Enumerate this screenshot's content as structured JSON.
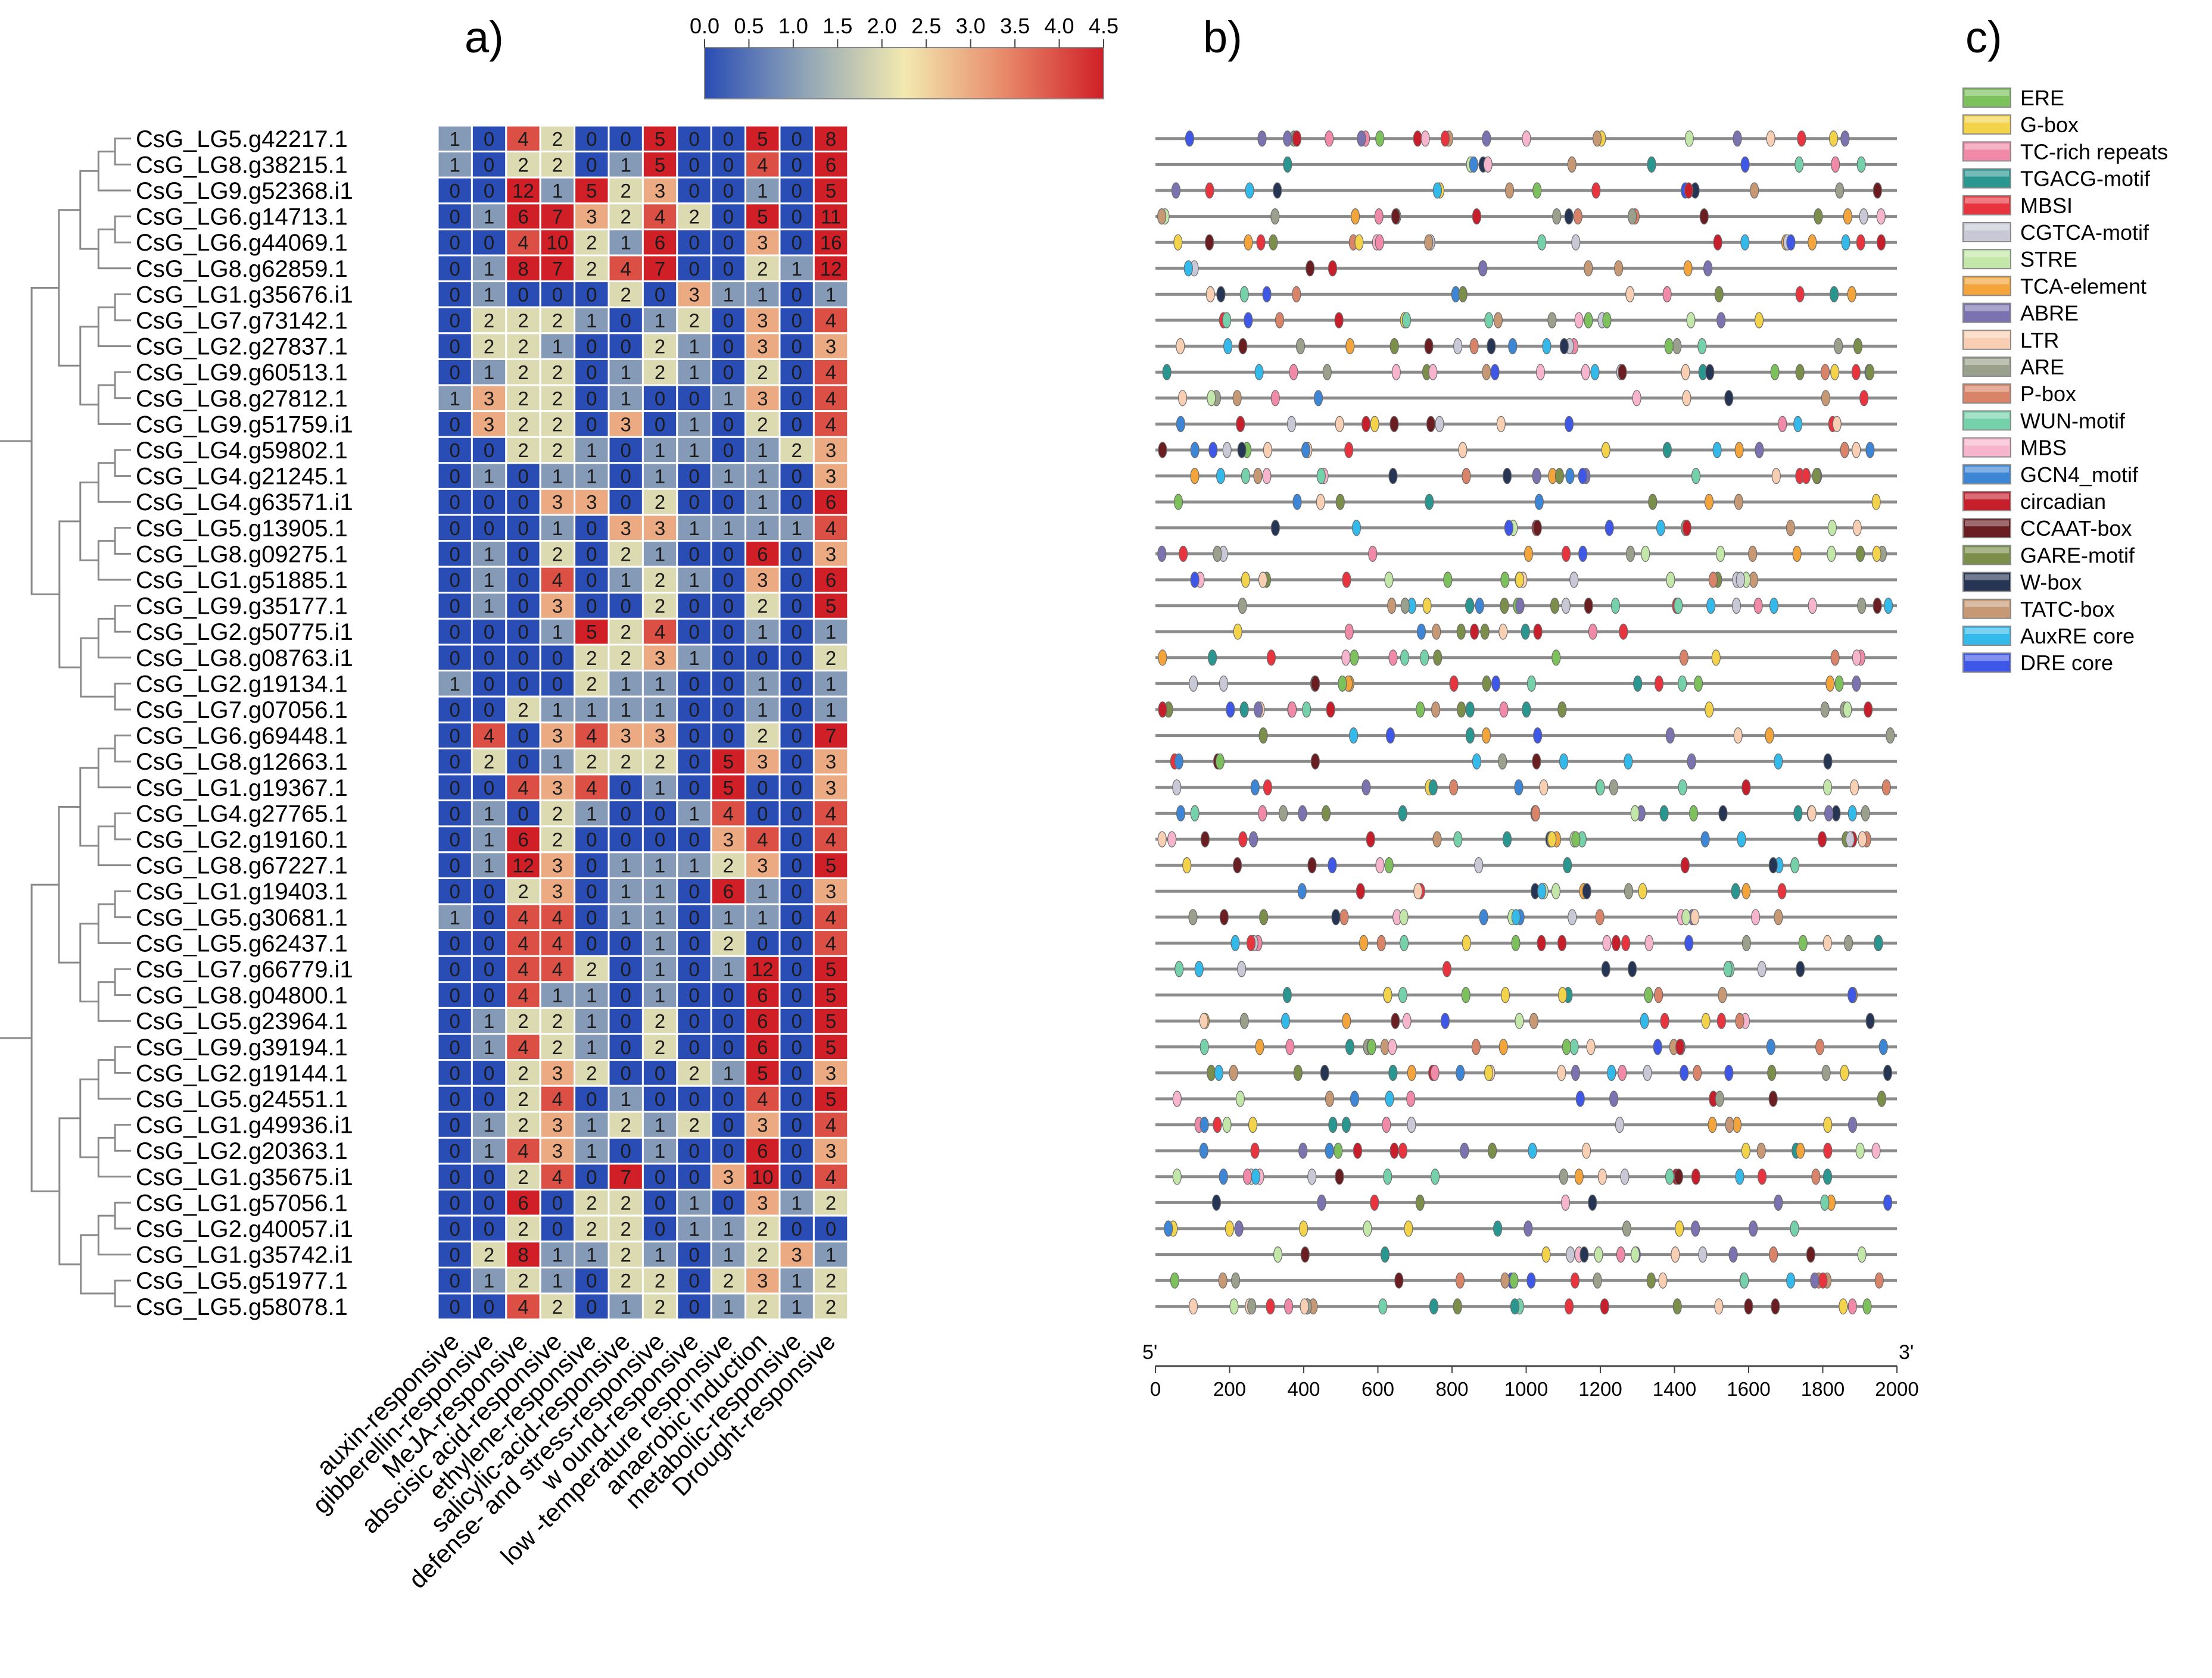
{
  "panels": {
    "a": "a)",
    "b": "b)",
    "c": "c)"
  },
  "colorbar": {
    "ticks": [
      "0.0",
      "0.5",
      "1.0",
      "1.5",
      "2.0",
      "2.5",
      "3.0",
      "3.5",
      "4.0",
      "4.5"
    ],
    "range": [
      0,
      4.5
    ],
    "stops": [
      "#2a4db5",
      "#8fa4b6",
      "#f2e9b0",
      "#e88a6a",
      "#d01f27"
    ]
  },
  "chart_data": [
    {
      "type": "heatmap",
      "title": "",
      "rows": [
        "CsG_LG5.g42217.1",
        "CsG_LG8.g38215.1",
        "CsG_LG9.g52368.i1",
        "CsG_LG6.g14713.1",
        "CsG_LG6.g44069.1",
        "CsG_LG8.g62859.1",
        "CsG_LG1.g35676.i1",
        "CsG_LG7.g73142.1",
        "CsG_LG2.g27837.1",
        "CsG_LG9.g60513.1",
        "CsG_LG8.g27812.1",
        "CsG_LG9.g51759.i1",
        "CsG_LG4.g59802.1",
        "CsG_LG4.g21245.1",
        "CsG_LG4.g63571.i1",
        "CsG_LG5.g13905.1",
        "CsG_LG8.g09275.1",
        "CsG_LG1.g51885.1",
        "CsG_LG9.g35177.1",
        "CsG_LG2.g50775.i1",
        "CsG_LG8.g08763.i1",
        "CsG_LG2.g19134.1",
        "CsG_LG7.g07056.1",
        "CsG_LG6.g69448.1",
        "CsG_LG8.g12663.1",
        "CsG_LG1.g19367.1",
        "CsG_LG4.g27765.1",
        "CsG_LG2.g19160.1",
        "CsG_LG8.g67227.1",
        "CsG_LG1.g19403.1",
        "CsG_LG5.g30681.1",
        "CsG_LG5.g62437.1",
        "CsG_LG7.g66779.i1",
        "CsG_LG8.g04800.1",
        "CsG_LG5.g23964.1",
        "CsG_LG9.g39194.1",
        "CsG_LG2.g19144.1",
        "CsG_LG5.g24551.1",
        "CsG_LG1.g49936.i1",
        "CsG_LG2.g20363.1",
        "CsG_LG1.g35675.i1",
        "CsG_LG1.g57056.1",
        "CsG_LG2.g40057.i1",
        "CsG_LG1.g35742.i1",
        "CsG_LG5.g51977.1",
        "CsG_LG5.g58078.1"
      ],
      "columns": [
        "auxin-responsive",
        "gibberellin-responsive",
        "MeJA-responsive",
        "abscisic acid-responsive",
        "ethylene-responsive",
        "salicylic-acid-responsive",
        "defense- and stress-responsive",
        "w ound-responsive",
        "low -temperature responsive",
        "anaerobic induction",
        "metabolic-responsive",
        "Drought-responsive"
      ],
      "values": [
        [
          1,
          0,
          4,
          2,
          0,
          0,
          5,
          0,
          0,
          5,
          0,
          8
        ],
        [
          1,
          0,
          2,
          2,
          0,
          1,
          5,
          0,
          0,
          4,
          0,
          6
        ],
        [
          0,
          0,
          12,
          1,
          5,
          2,
          3,
          0,
          0,
          1,
          0,
          5
        ],
        [
          0,
          1,
          6,
          7,
          3,
          2,
          4,
          2,
          0,
          5,
          0,
          11
        ],
        [
          0,
          0,
          4,
          10,
          2,
          1,
          6,
          0,
          0,
          3,
          0,
          16
        ],
        [
          0,
          1,
          8,
          7,
          2,
          4,
          7,
          0,
          0,
          2,
          1,
          12
        ],
        [
          0,
          1,
          0,
          0,
          0,
          2,
          0,
          3,
          1,
          1,
          0,
          1
        ],
        [
          0,
          2,
          2,
          2,
          1,
          0,
          1,
          2,
          0,
          3,
          0,
          4
        ],
        [
          0,
          2,
          2,
          1,
          0,
          0,
          2,
          1,
          0,
          3,
          0,
          3
        ],
        [
          0,
          1,
          2,
          2,
          0,
          1,
          2,
          1,
          0,
          2,
          0,
          4
        ],
        [
          1,
          3,
          2,
          2,
          0,
          1,
          0,
          0,
          1,
          3,
          0,
          4
        ],
        [
          0,
          3,
          2,
          2,
          0,
          3,
          0,
          1,
          0,
          2,
          0,
          4
        ],
        [
          0,
          0,
          2,
          2,
          1,
          0,
          1,
          1,
          0,
          1,
          2,
          3
        ],
        [
          0,
          1,
          0,
          1,
          1,
          0,
          1,
          0,
          1,
          1,
          0,
          3
        ],
        [
          0,
          0,
          0,
          3,
          3,
          0,
          2,
          0,
          0,
          1,
          0,
          6
        ],
        [
          0,
          0,
          0,
          1,
          0,
          3,
          3,
          1,
          1,
          1,
          1,
          4
        ],
        [
          0,
          1,
          0,
          2,
          0,
          2,
          1,
          0,
          0,
          6,
          0,
          3
        ],
        [
          0,
          1,
          0,
          4,
          0,
          1,
          2,
          1,
          0,
          3,
          0,
          6
        ],
        [
          0,
          1,
          0,
          3,
          0,
          0,
          2,
          0,
          0,
          2,
          0,
          5
        ],
        [
          0,
          0,
          0,
          1,
          5,
          2,
          4,
          0,
          0,
          1,
          0,
          1
        ],
        [
          0,
          0,
          0,
          0,
          2,
          2,
          3,
          1,
          0,
          0,
          0,
          2
        ],
        [
          1,
          0,
          0,
          0,
          2,
          1,
          1,
          0,
          0,
          1,
          0,
          1
        ],
        [
          0,
          0,
          2,
          1,
          1,
          1,
          1,
          0,
          0,
          1,
          0,
          1
        ],
        [
          0,
          4,
          0,
          3,
          4,
          3,
          3,
          0,
          0,
          2,
          0,
          7
        ],
        [
          0,
          2,
          0,
          1,
          2,
          2,
          2,
          0,
          5,
          3,
          0,
          3
        ],
        [
          0,
          0,
          4,
          3,
          4,
          0,
          1,
          0,
          5,
          0,
          0,
          3
        ],
        [
          0,
          1,
          0,
          2,
          1,
          0,
          0,
          1,
          4,
          0,
          0,
          4
        ],
        [
          0,
          1,
          6,
          2,
          0,
          0,
          0,
          0,
          3,
          4,
          0,
          4
        ],
        [
          0,
          1,
          12,
          3,
          0,
          1,
          1,
          1,
          2,
          3,
          0,
          5
        ],
        [
          0,
          0,
          2,
          3,
          0,
          1,
          1,
          0,
          6,
          1,
          0,
          3
        ],
        [
          1,
          0,
          4,
          4,
          0,
          1,
          1,
          0,
          1,
          1,
          0,
          4
        ],
        [
          0,
          0,
          4,
          4,
          0,
          0,
          1,
          0,
          2,
          0,
          0,
          4
        ],
        [
          0,
          0,
          4,
          4,
          2,
          0,
          1,
          0,
          1,
          12,
          0,
          5
        ],
        [
          0,
          0,
          4,
          1,
          1,
          0,
          1,
          0,
          0,
          6,
          0,
          5
        ],
        [
          0,
          1,
          2,
          2,
          1,
          0,
          2,
          0,
          0,
          6,
          0,
          5
        ],
        [
          0,
          1,
          4,
          2,
          1,
          0,
          2,
          0,
          0,
          6,
          0,
          5
        ],
        [
          0,
          0,
          2,
          3,
          2,
          0,
          0,
          2,
          1,
          5,
          0,
          3
        ],
        [
          0,
          0,
          2,
          4,
          0,
          1,
          0,
          0,
          0,
          4,
          0,
          5
        ],
        [
          0,
          1,
          2,
          3,
          1,
          2,
          1,
          2,
          0,
          3,
          0,
          4
        ],
        [
          0,
          1,
          4,
          3,
          1,
          0,
          1,
          0,
          0,
          6,
          0,
          3
        ],
        [
          0,
          0,
          2,
          4,
          0,
          7,
          0,
          0,
          3,
          10,
          0,
          4
        ],
        [
          0,
          0,
          6,
          0,
          2,
          2,
          0,
          1,
          0,
          3,
          1,
          2
        ],
        [
          0,
          0,
          2,
          0,
          2,
          2,
          0,
          1,
          1,
          2,
          0,
          0
        ],
        [
          0,
          2,
          8,
          1,
          1,
          2,
          1,
          0,
          1,
          2,
          3,
          1
        ],
        [
          0,
          1,
          2,
          1,
          0,
          2,
          2,
          0,
          2,
          3,
          1,
          2
        ],
        [
          0,
          0,
          4,
          2,
          0,
          1,
          2,
          0,
          1,
          2,
          1,
          2
        ]
      ],
      "colorscale_range": [
        0,
        4.5
      ]
    },
    {
      "type": "scatter",
      "title": "",
      "x_axis": {
        "range": [
          0,
          2000
        ],
        "ticks": [
          "0",
          "200",
          "400",
          "600",
          "800",
          "1000",
          "1200",
          "1400",
          "1600",
          "1800",
          "2000"
        ],
        "start_label": "5'",
        "end_label": "3'"
      }
    }
  ],
  "legend": {
    "placement": "right",
    "items": [
      {
        "label": "ERE",
        "color": "#7cc15c"
      },
      {
        "label": "G-box",
        "color": "#f3d34a"
      },
      {
        "label": "TC-rich repeats",
        "color": "#f08aa8"
      },
      {
        "label": "TGACG-motif",
        "color": "#2a9690"
      },
      {
        "label": "MBSI",
        "color": "#e8343f"
      },
      {
        "label": "CGTCA-motif",
        "color": "#c8c8d6"
      },
      {
        "label": "STRE",
        "color": "#c3e7a8"
      },
      {
        "label": "TCA-element",
        "color": "#f3a53c"
      },
      {
        "label": "ABRE",
        "color": "#7a73b0"
      },
      {
        "label": "LTR",
        "color": "#f8cfb3"
      },
      {
        "label": "ARE",
        "color": "#9aa08c"
      },
      {
        "label": "P-box",
        "color": "#d98468"
      },
      {
        "label": "WUN-motif",
        "color": "#75d1aa"
      },
      {
        "label": "MBS",
        "color": "#f6b5cc"
      },
      {
        "label": "GCN4_motif",
        "color": "#3d86d6"
      },
      {
        "label": "circadian",
        "color": "#c71e2c"
      },
      {
        "label": "CCAAT-box",
        "color": "#6b1e22"
      },
      {
        "label": "GARE-motif",
        "color": "#7b8f4a"
      },
      {
        "label": "W-box",
        "color": "#253553"
      },
      {
        "label": "TATC-box",
        "color": "#c79874"
      },
      {
        "label": "AuxRE core",
        "color": "#33b9ea"
      },
      {
        "label": "DRE core",
        "color": "#3e57e6"
      }
    ]
  }
}
